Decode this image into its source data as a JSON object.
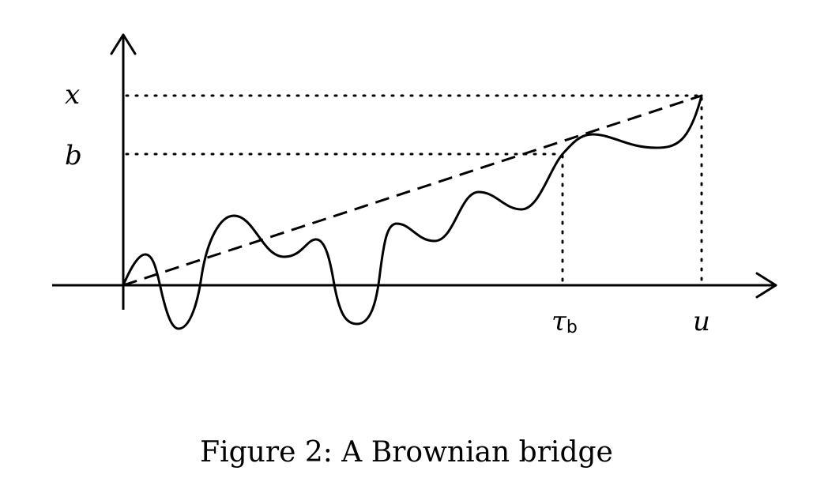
{
  "figure": {
    "caption": "Figure 2: A Brownian bridge",
    "labels": {
      "x": "x",
      "b": "b",
      "tau": "τ",
      "tau_subscript": "b",
      "u": "u"
    },
    "colors": {
      "ink": "#000000",
      "background": "#ffffff"
    }
  }
}
